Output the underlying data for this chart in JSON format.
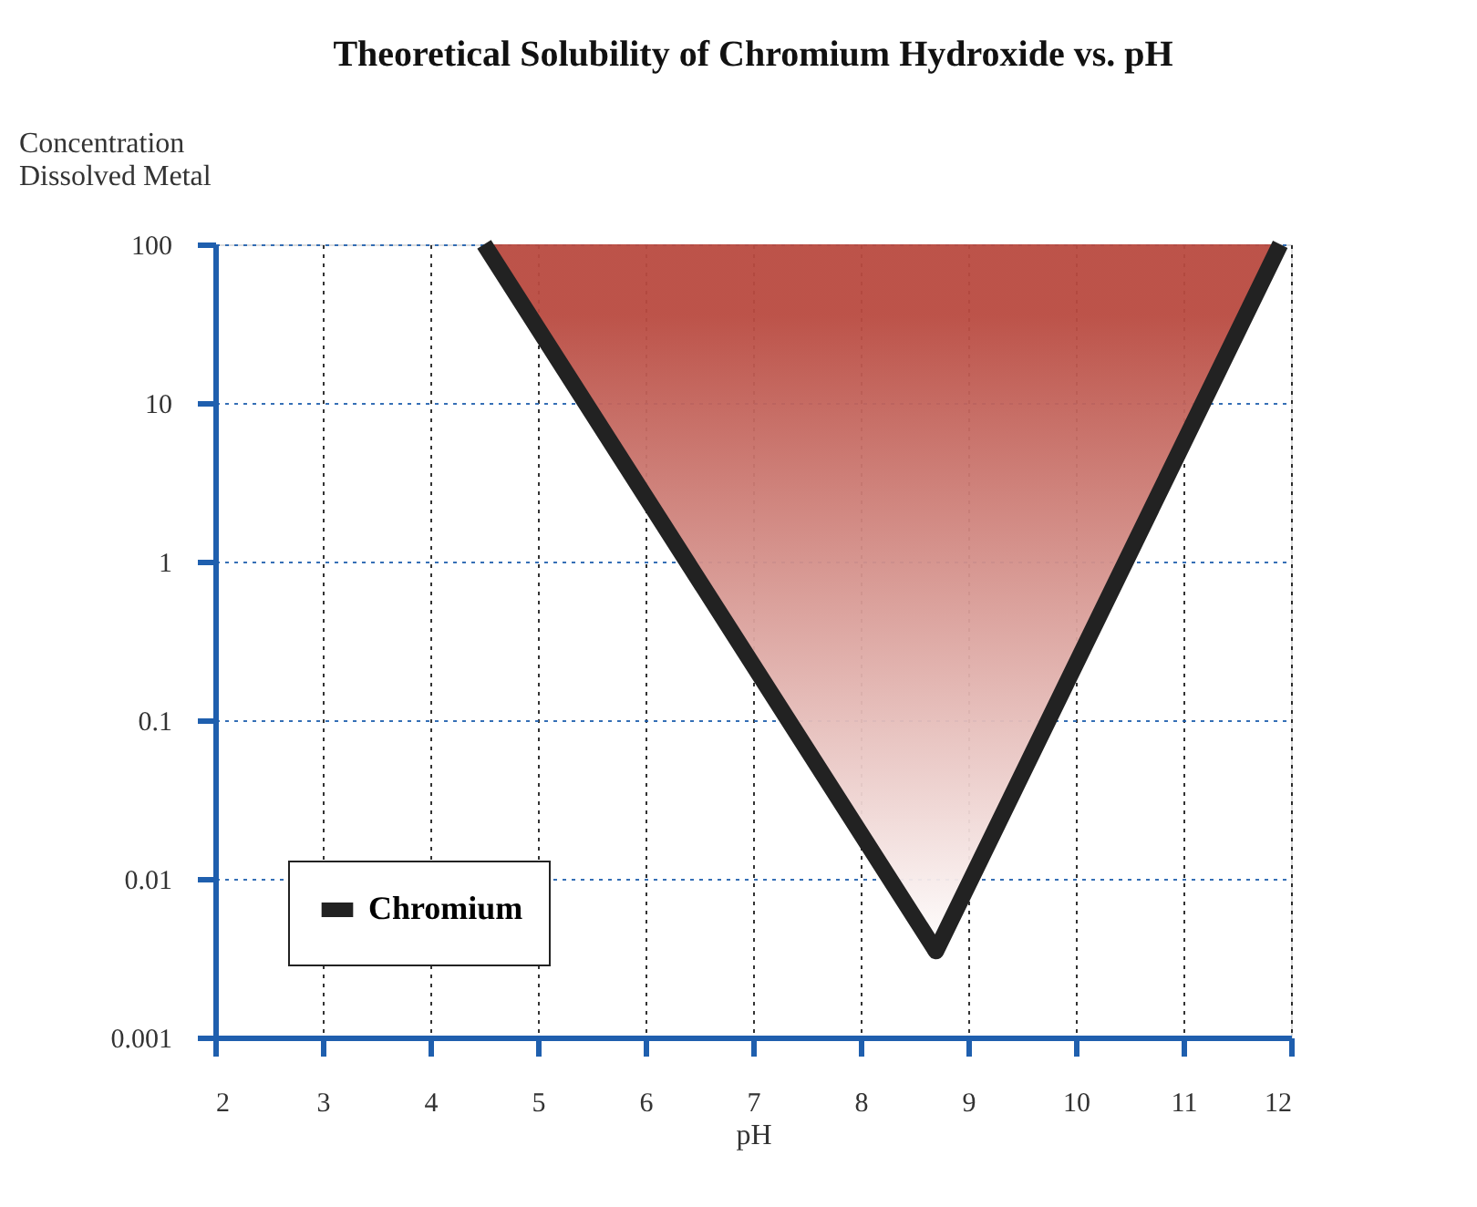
{
  "chart_data": {
    "type": "line",
    "title": "Theoretical Solubility of Chromium Hydroxide vs. pH",
    "xlabel": "pH",
    "ylabel": "Concentration Dissolved Metal",
    "series": [
      {
        "name": "Chromium",
        "type": "line",
        "color": "#222222",
        "x": [
          4.5,
          8.7,
          11.9
        ],
        "values": [
          100,
          0.0035,
          100
        ],
        "lower": [
          100,
          0.0035,
          100
        ],
        "upper": [
          100,
          100,
          100
        ]
      }
    ],
    "xlim": [
      2,
      12
    ],
    "xticks": [
      2,
      3,
      4,
      5,
      6,
      7,
      8,
      9,
      10,
      11,
      12
    ],
    "ylim": [
      0.001,
      100
    ],
    "yticks": [
      0.001,
      0.01,
      0.1,
      1,
      10,
      100
    ],
    "log": "y",
    "grid": true,
    "legend": "bottom left"
  }
}
